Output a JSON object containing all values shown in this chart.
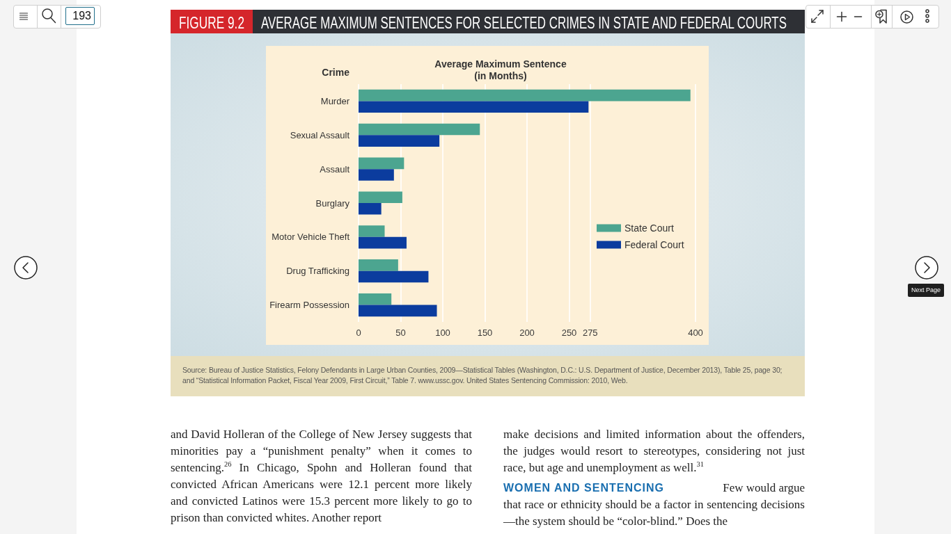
{
  "chart_data": {
    "type": "bar",
    "orientation": "horizontal",
    "title": "AVERAGE MAXIMUM SENTENCES FOR SELECTED CRIMES IN STATE AND FEDERAL COURTS",
    "xlabel": "Average Maximum Sentence\n(in Months)",
    "ylabel": "Crime",
    "categories": [
      "Murder",
      "Sexual Assault",
      "Assault",
      "Burglary",
      "Motor Vehicle Theft",
      "Drug Trafficking",
      "Firearm Possession"
    ],
    "series": [
      {
        "name": "State Court",
        "color": "#4ca590",
        "values": [
          394,
          144,
          54,
          52,
          31,
          47,
          39
        ]
      },
      {
        "name": "Federal Court",
        "color": "#0b3c9e",
        "values": [
          273,
          96,
          42,
          27,
          57,
          83,
          93
        ]
      }
    ],
    "xlim": [
      0,
      400
    ],
    "xticks": [
      0,
      50,
      100,
      150,
      200,
      250,
      275,
      400
    ],
    "grid": "x",
    "legend": "right",
    "annotations": [
      "FIGURE 9.2",
      "Source: Bureau of Justice Statistics, Felony Defendants in Large Urban Counties, 2009—Statistical Tables (Washington, D.C.: U.S. Department of Justice, December 2013), Table 25, page 30; and “Statistical Information Packet, Fiscal Year 2009, First Circuit,” Table 7. www.ussc.gov. United States Sentencing Commission: 2010, Web.",
      "and David Holleran of the College of New Jersey suggests that minorities pay a “punishment penalty” when it comes to sentencing.$^{26}$ In Chicago, Spohn and Holleran found that convicted African Americans were 12.1 percent more likely and convicted Latinos were 15.3 percent more likely to go to prison than convicted whites. Another report",
      "make decisions and limited information about the offenders, the judges would resort to stereotypes, considering not just race, but age and unemployment as well.$^{31}$",
      "WOMEN AND SENTENCING",
      "Few would argue",
      "that race or ethnicity should be a factor in sentencing decisions—the system should be “color-blind.” Does the",
      "193",
      "Next Page"
    ]
  }
}
